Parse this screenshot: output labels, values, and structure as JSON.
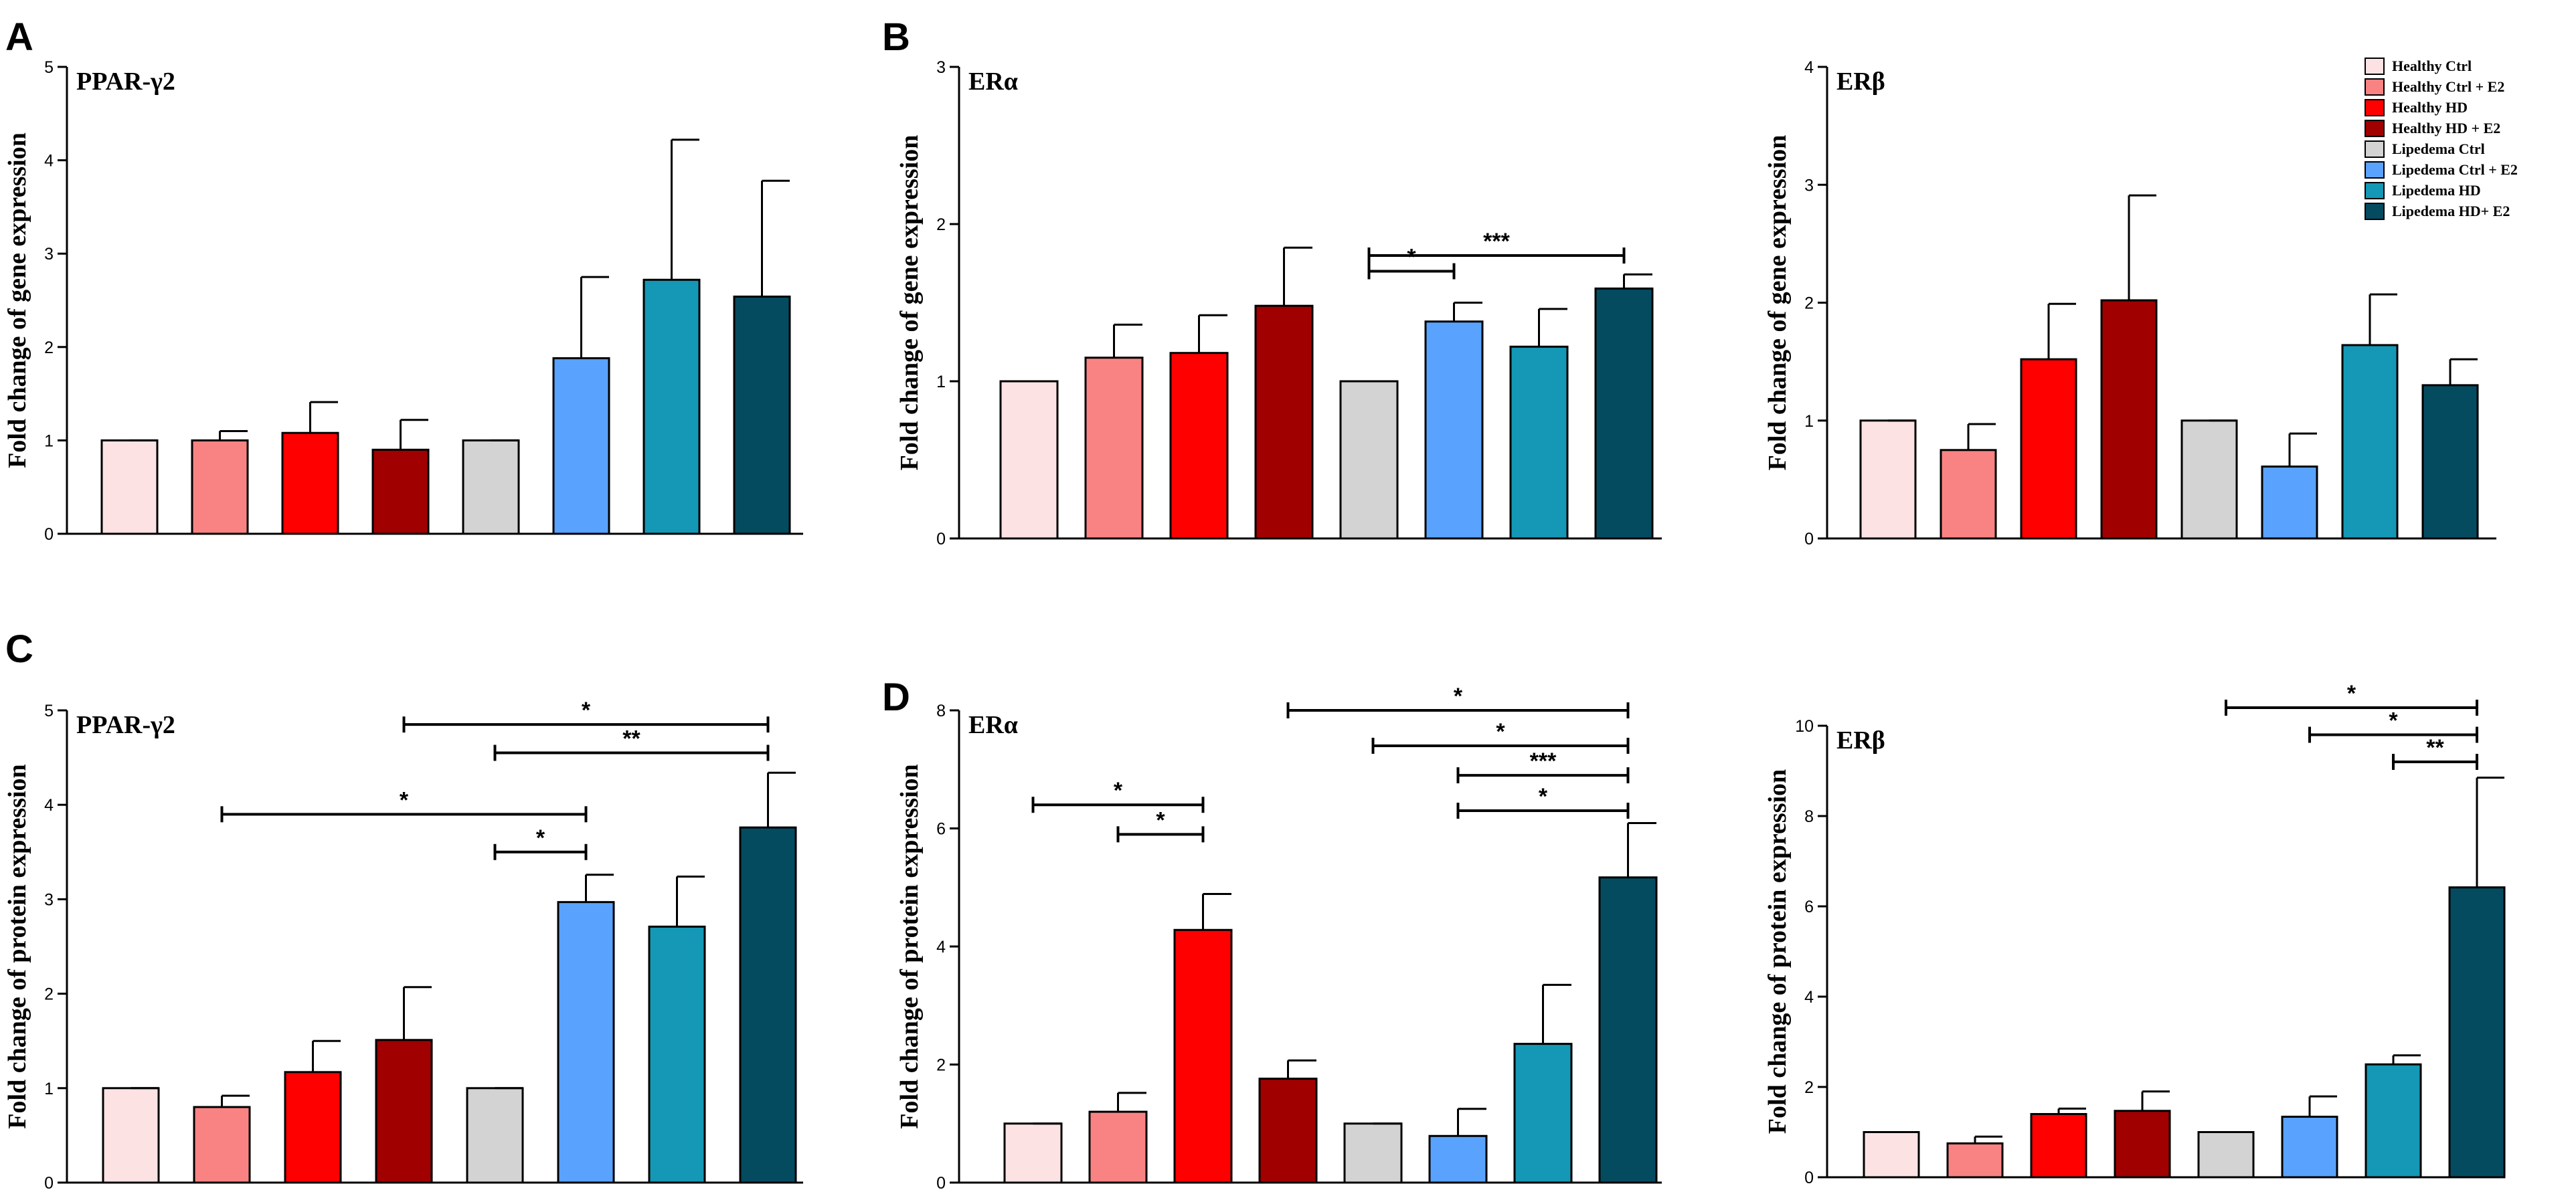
{
  "panel_letters": [
    "A",
    "B",
    "C",
    "D"
  ],
  "legend": [
    {
      "label": "Healthy Ctrl",
      "color": "#FDE2E4"
    },
    {
      "label": "Healthy Ctrl + E2",
      "color": "#F98383"
    },
    {
      "label": "Healthy HD",
      "color": "#FF0000"
    },
    {
      "label": "Healthy HD + E2",
      "color": "#A00000"
    },
    {
      "label": "Lipedema Ctrl",
      "color": "#D3D3D3"
    },
    {
      "label": "Lipedema Ctrl + E2",
      "color": "#59A3FF"
    },
    {
      "label": "Lipedema HD",
      "color": "#1498B5"
    },
    {
      "label": "Lipedema HD+ E2",
      "color": "#044B60"
    }
  ],
  "chart_data": [
    {
      "type": "bar",
      "title": "PPAR-γ2",
      "ylabel": "Fold change of gene expression",
      "categories": [
        "Healthy Ctrl",
        "Healthy Ctrl + E2",
        "Healthy HD",
        "Healthy HD + E2",
        "Lipedema Ctrl",
        "Lipedema Ctrl + E2",
        "Lipedema HD",
        "Lipedema HD+ E2"
      ],
      "values": [
        1.0,
        1.0,
        1.08,
        0.9,
        1.0,
        1.88,
        2.72,
        2.54
      ],
      "errors": [
        0.0,
        0.1,
        0.33,
        0.32,
        0.0,
        0.87,
        1.5,
        1.24
      ],
      "ylim": [
        0,
        5
      ],
      "yticks": [
        "0",
        "1",
        "2",
        "3",
        "4",
        "5"
      ],
      "significance": []
    },
    {
      "type": "bar",
      "title": "ERα",
      "ylabel": "Fold change of gene expression",
      "categories": [
        "Healthy Ctrl",
        "Healthy Ctrl + E2",
        "Healthy HD",
        "Healthy HD + E2",
        "Lipedema Ctrl",
        "Lipedema Ctrl + E2",
        "Lipedema HD",
        "Lipedema HD+ E2"
      ],
      "values": [
        1.0,
        1.15,
        1.18,
        1.48,
        1.0,
        1.38,
        1.22,
        1.59
      ],
      "errors": [
        0.0,
        0.21,
        0.24,
        0.37,
        0.0,
        0.12,
        0.24,
        0.09
      ],
      "ylim": [
        0,
        3
      ],
      "yticks": [
        "0",
        "1",
        "2",
        "3"
      ],
      "significance": [
        {
          "from": 4,
          "to": 7,
          "level": 1.8,
          "label": "***"
        },
        {
          "from": 4,
          "to": 5,
          "level": 1.7,
          "label": "*"
        }
      ]
    },
    {
      "type": "bar",
      "title": "ERβ",
      "ylabel": "Fold change of gene expression",
      "categories": [
        "Healthy Ctrl",
        "Healthy Ctrl + E2",
        "Healthy HD",
        "Healthy HD + E2",
        "Lipedema Ctrl",
        "Lipedema Ctrl + E2",
        "Lipedema HD",
        "Lipedema HD+ E2"
      ],
      "values": [
        1.0,
        0.75,
        1.52,
        2.02,
        1.0,
        0.61,
        1.64,
        1.3
      ],
      "errors": [
        0.0,
        0.22,
        0.47,
        0.89,
        0.0,
        0.28,
        0.43,
        0.22
      ],
      "ylim": [
        0,
        4
      ],
      "yticks": [
        "0",
        "1",
        "2",
        "3",
        "4"
      ],
      "significance": []
    },
    {
      "type": "bar",
      "title": "PPAR-γ2",
      "ylabel": "Fold change of protein expression",
      "categories": [
        "Healthy Ctrl",
        "Healthy Ctrl + E2",
        "Healthy HD",
        "Healthy HD + E2",
        "Lipedema Ctrl",
        "Lipedema Ctrl + E2",
        "Lipedema HD",
        "Lipedema HD+ E2"
      ],
      "values": [
        1.0,
        0.8,
        1.17,
        1.51,
        1.0,
        2.97,
        2.71,
        3.76
      ],
      "errors": [
        0.0,
        0.12,
        0.33,
        0.56,
        0.0,
        0.29,
        0.53,
        0.58
      ],
      "ylim": [
        0,
        5
      ],
      "yticks": [
        "0",
        "1",
        "2",
        "3",
        "4",
        "5"
      ],
      "significance": [
        {
          "from": 3,
          "to": 7,
          "level": 4.85,
          "label": "*"
        },
        {
          "from": 4,
          "to": 7,
          "level": 4.55,
          "label": "**"
        },
        {
          "from": 1,
          "to": 5,
          "level": 3.9,
          "label": "*"
        },
        {
          "from": 4,
          "to": 5,
          "level": 3.5,
          "label": "*"
        }
      ]
    },
    {
      "type": "bar",
      "title": "ERα",
      "ylabel": "Fold change of protein expression",
      "categories": [
        "Healthy Ctrl",
        "Healthy Ctrl + E2",
        "Healthy HD",
        "Healthy HD + E2",
        "Lipedema Ctrl",
        "Lipedema Ctrl + E2",
        "Lipedema HD",
        "Lipedema HD+ E2"
      ],
      "values": [
        1.0,
        1.2,
        4.28,
        1.76,
        1.0,
        0.79,
        2.35,
        5.17
      ],
      "errors": [
        0.0,
        0.32,
        0.61,
        0.31,
        0.0,
        0.46,
        1.0,
        0.92
      ],
      "ylim": [
        0,
        8
      ],
      "yticks": [
        "0",
        "2",
        "4",
        "6",
        "8"
      ],
      "significance": [
        {
          "from": 0,
          "to": 2,
          "level": 6.4,
          "label": "*"
        },
        {
          "from": 1,
          "to": 2,
          "level": 5.9,
          "label": "*"
        },
        {
          "from": 3,
          "to": 7,
          "level": 8.0,
          "label": "*"
        },
        {
          "from": 4,
          "to": 7,
          "level": 7.4,
          "label": "*"
        },
        {
          "from": 5,
          "to": 7,
          "level": 6.9,
          "label": "***"
        },
        {
          "from": 5,
          "to": 7,
          "level": 6.3,
          "label": "*"
        }
      ]
    },
    {
      "type": "bar",
      "title": "ERβ",
      "ylabel": "Fold change of protein expression",
      "categories": [
        "Healthy Ctrl",
        "Healthy Ctrl + E2",
        "Healthy HD",
        "Healthy HD + E2",
        "Lipedema Ctrl",
        "Lipedema Ctrl + E2",
        "Lipedema HD",
        "Lipedema HD+ E2"
      ],
      "values": [
        1.0,
        0.75,
        1.4,
        1.47,
        1.0,
        1.34,
        2.5,
        6.42
      ],
      "errors": [
        0.0,
        0.15,
        0.12,
        0.43,
        0.0,
        0.45,
        0.2,
        2.43
      ],
      "ylim": [
        0,
        10
      ],
      "yticks": [
        "0",
        "2",
        "4",
        "6",
        "8",
        "10"
      ],
      "significance": [
        {
          "from": 4,
          "to": 7,
          "level": 10.4,
          "label": "*"
        },
        {
          "from": 5,
          "to": 7,
          "level": 9.8,
          "label": "*"
        },
        {
          "from": 6,
          "to": 7,
          "level": 9.2,
          "label": "**"
        }
      ]
    }
  ]
}
